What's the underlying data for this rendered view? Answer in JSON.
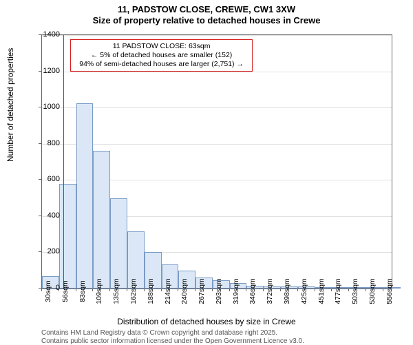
{
  "title": "11, PADSTOW CLOSE, CREWE, CW1 3XW",
  "subtitle": "Size of property relative to detached houses in Crewe",
  "y_axis_label": "Number of detached properties",
  "x_axis_label": "Distribution of detached houses by size in Crewe",
  "footer_line1": "Contains HM Land Registry data © Crown copyright and database right 2025.",
  "footer_line2": "Contains public sector information licensed under the Open Government Licence v3.0.",
  "chart": {
    "type": "histogram",
    "background_color": "#ffffff",
    "grid_color": "#e0e0e0",
    "axis_color": "#646464",
    "bar_fill": "#dbe7f6",
    "bar_stroke": "#7a9bc4",
    "reference_line_color": "#d81e1e",
    "title_fontsize": 13,
    "label_fontsize": 12,
    "tick_fontsize": 11,
    "ylim": [
      0,
      1400
    ],
    "ytick_step": 200,
    "x_min": 30,
    "x_max": 569,
    "x_tick_start": 30,
    "x_tick_step": 26.3,
    "x_tick_count": 21,
    "x_tick_unit": "sqm",
    "bin_width_sqm": 26.3,
    "values": [
      70,
      580,
      1025,
      760,
      500,
      315,
      200,
      135,
      100,
      60,
      45,
      30,
      15,
      10,
      10,
      10,
      5,
      5,
      5,
      2,
      2
    ],
    "reference_value_sqm": 63,
    "annotation": {
      "line1": "11 PADSTOW CLOSE: 63sqm",
      "line2": "← 5% of detached houses are smaller (152)",
      "line3": "94% of semi-detached houses are larger (2,751) →",
      "border_color": "#d81e1e",
      "fontsize": 10.5
    }
  }
}
